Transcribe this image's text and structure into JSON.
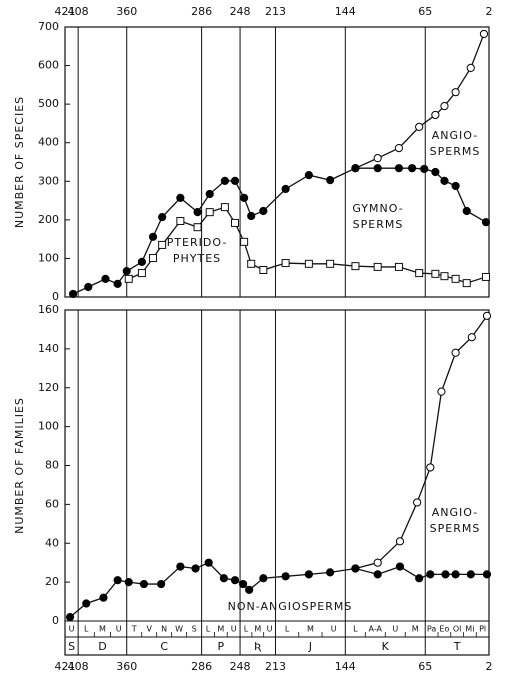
{
  "chart_data": [
    {
      "type": "line",
      "ylabel": "NUMBER OF SPECIES",
      "xlim": [
        421,
        2
      ],
      "xticks": [
        421,
        408,
        360,
        286,
        248,
        213,
        144,
        65,
        2
      ],
      "ylim": [
        0,
        700
      ],
      "yticks": [
        0,
        100,
        200,
        300,
        400,
        500,
        600,
        700
      ],
      "series": [
        {
          "label": [
            "ANGIO-",
            "SPERMS"
          ],
          "marker": "open",
          "color": "#000000",
          "x": [
            134,
            112,
            91,
            71,
            55,
            46,
            35,
            20,
            7
          ],
          "values": [
            334,
            360,
            386,
            441,
            472,
            495,
            531,
            594,
            682
          ]
        },
        {
          "label": [
            "PTERIDO-",
            "PHYTES"
          ],
          "marker": "square",
          "color": "#000000",
          "x": [
            358,
            345,
            334,
            325,
            307,
            290,
            278,
            263,
            253,
            244,
            237,
            225,
            203,
            180,
            159,
            134,
            112,
            91,
            71,
            55,
            46,
            35,
            24,
            5
          ],
          "values": [
            47,
            62,
            101,
            135,
            197,
            181,
            220,
            233,
            192,
            143,
            86,
            70,
            88,
            86,
            86,
            80,
            78,
            78,
            62,
            60,
            54,
            47,
            36,
            52
          ]
        },
        {
          "label": [
            "GYMNO-",
            "SPERMS"
          ],
          "marker": "filled",
          "color": "#000000",
          "x": [
            413,
            398,
            381,
            369,
            360,
            345,
            334,
            325,
            307,
            290,
            278,
            263,
            253,
            244,
            237,
            225,
            203,
            180,
            159,
            134,
            112,
            91,
            78,
            66,
            55,
            46,
            35,
            24,
            5
          ],
          "values": [
            8,
            26,
            47,
            34,
            67,
            91,
            156,
            207,
            257,
            220,
            267,
            301,
            301,
            257,
            210,
            223,
            280,
            316,
            303,
            334,
            334,
            334,
            334,
            332,
            324,
            301,
            288,
            223,
            194
          ]
        }
      ]
    },
    {
      "type": "line",
      "ylabel": "NUMBER OF FAMILIES",
      "xlim": [
        421,
        2
      ],
      "xticks": [
        421,
        408,
        360,
        286,
        248,
        213,
        144,
        65,
        2
      ],
      "ylim": [
        0,
        160
      ],
      "yticks": [
        0,
        20,
        40,
        60,
        80,
        100,
        120,
        140,
        160
      ],
      "series": [
        {
          "label": [
            "ANGIO-",
            "SPERMS"
          ],
          "marker": "open",
          "color": "#000000",
          "x": [
            134,
            112,
            90,
            73,
            60,
            49,
            35,
            19,
            4
          ],
          "values": [
            27,
            30,
            41,
            61,
            79,
            118,
            138,
            146,
            157
          ]
        },
        {
          "label": [
            "NON-ANGIOSPERMS"
          ],
          "marker": "filled",
          "color": "#000000",
          "x": [
            416,
            400,
            383,
            369,
            358,
            343,
            326,
            307,
            292,
            279,
            264,
            253,
            245,
            239,
            225,
            203,
            180,
            159,
            134,
            112,
            90,
            71,
            60,
            45,
            35,
            20,
            4
          ],
          "values": [
            2,
            9,
            12,
            21,
            20,
            19,
            19,
            28,
            27,
            30,
            22,
            21,
            19,
            16,
            22,
            23,
            24,
            25,
            27,
            24,
            28,
            22,
            24,
            24,
            24,
            24,
            24
          ]
        }
      ],
      "periods": [
        {
          "label": "S",
          "epochs": [
            "U"
          ]
        },
        {
          "label": "D",
          "epochs": [
            "L",
            "M",
            "U"
          ]
        },
        {
          "label": "C",
          "epochs": [
            "T",
            "V",
            "N",
            "W",
            "S"
          ]
        },
        {
          "label": "P",
          "epochs": [
            "L",
            "M",
            "U"
          ]
        },
        {
          "label": "Ʀ",
          "epochs": [
            "L",
            "M",
            "U"
          ]
        },
        {
          "label": "J",
          "epochs": [
            "L",
            "M",
            "U"
          ]
        },
        {
          "label": "K",
          "epochs": [
            "L",
            "A-A",
            "U",
            "M"
          ]
        },
        {
          "label": "T",
          "epochs": [
            "Pa",
            "Eo",
            "Ol",
            "Mi",
            "Pl"
          ]
        }
      ]
    }
  ]
}
